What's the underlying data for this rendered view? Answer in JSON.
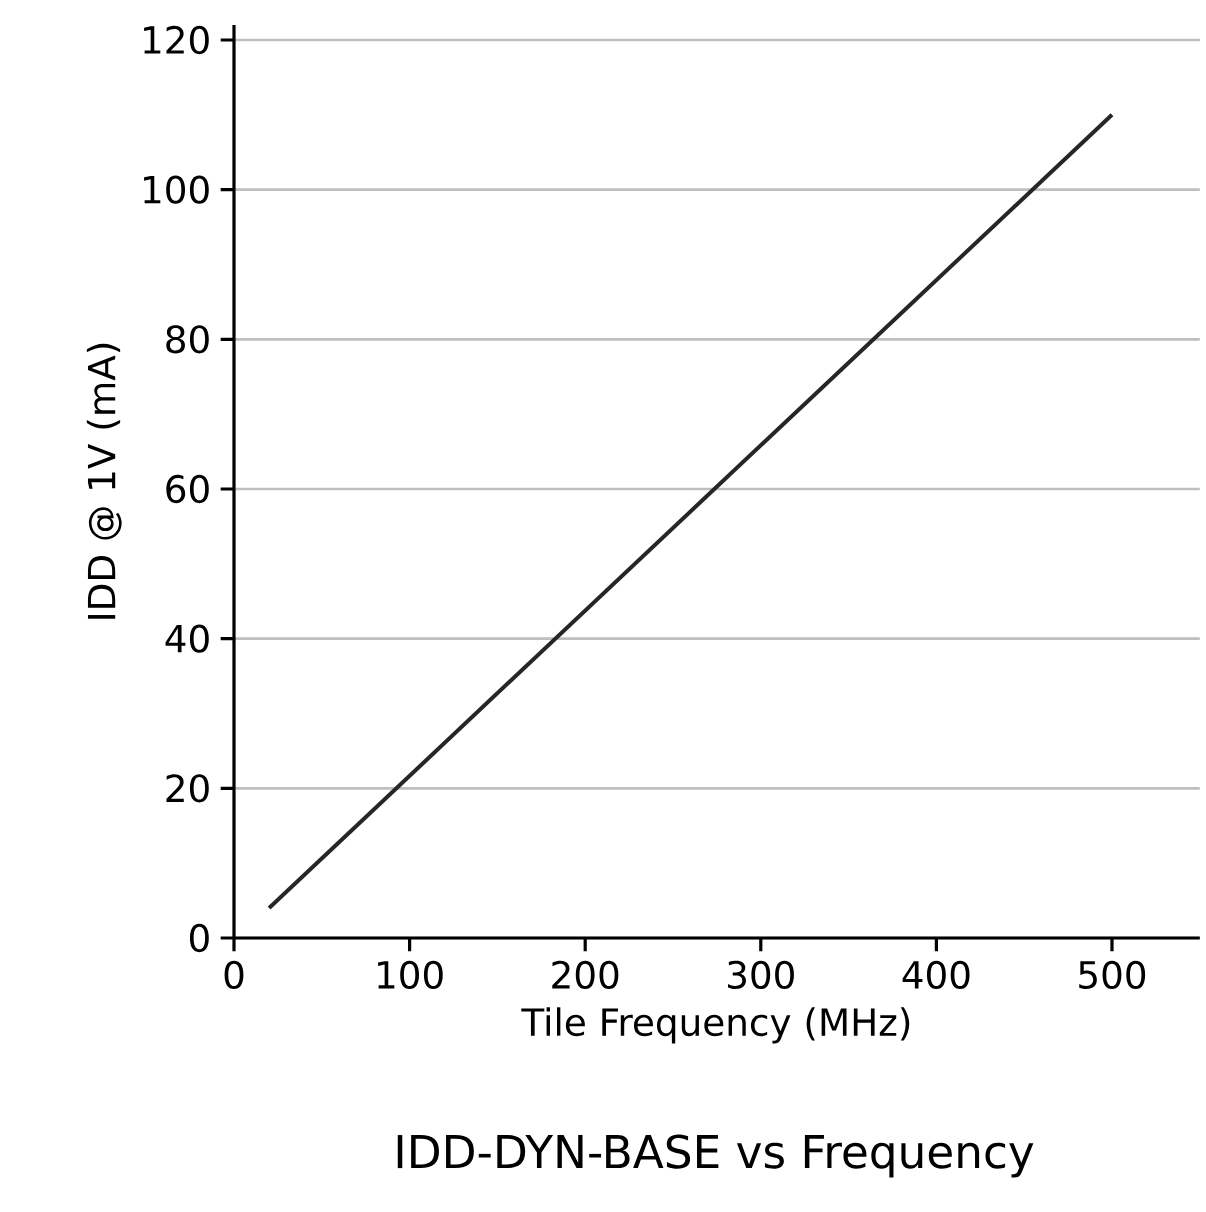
{
  "chart_data": {
    "type": "line",
    "title": "IDD-DYN-BASE vs Frequency",
    "xlabel": "Tile Frequency (MHz)",
    "ylabel": "IDD @ 1V (mA)",
    "x": [
      20,
      500
    ],
    "series": [
      {
        "color": "#262626",
        "values": [
          4,
          110
        ]
      }
    ],
    "xlim": [
      0,
      550
    ],
    "ylim": [
      0,
      122
    ],
    "xticks": [
      0,
      100,
      200,
      300,
      400,
      500
    ],
    "yticks": [
      0,
      20,
      40,
      60,
      80,
      100,
      120
    ],
    "grid": "y",
    "marker": "none",
    "line_style": "solid"
  }
}
